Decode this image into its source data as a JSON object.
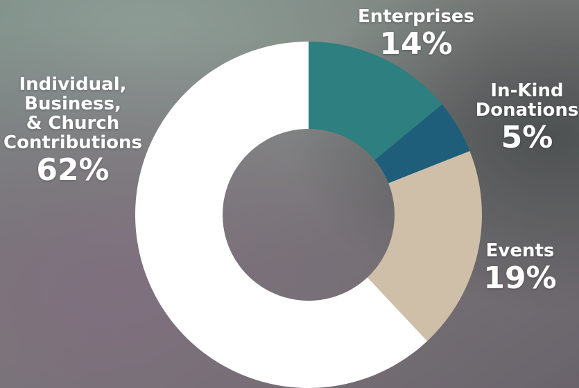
{
  "chart_data": {
    "type": "pie",
    "style": "donut",
    "slices": [
      {
        "label": "Enterprises",
        "label_lines": [
          "Enterprises"
        ],
        "pct_text": "14%",
        "value": 14,
        "color": "#2e7f7f"
      },
      {
        "label": "In-Kind Donations",
        "label_lines": [
          "In-Kind",
          "Donations"
        ],
        "pct_text": "5%",
        "value": 5,
        "color": "#1f5e7a"
      },
      {
        "label": "Events",
        "label_lines": [
          "Events"
        ],
        "pct_text": "19%",
        "value": 19,
        "color": "#cfbfa9"
      },
      {
        "label": "Individual, Business, & Church Contributions",
        "label_lines": [
          "Individual,",
          "Business,",
          "& Church",
          "Contributions"
        ],
        "pct_text": "62%",
        "value": 62,
        "color": "#ffffff"
      }
    ]
  }
}
